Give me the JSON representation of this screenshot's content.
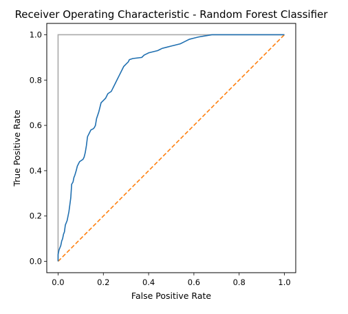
{
  "chart_data": {
    "type": "line",
    "title": "Receiver Operating Characteristic - Random Forest Classifier",
    "xlabel": "False Positive Rate",
    "ylabel": "True Positive Rate",
    "xlim": [
      -0.05,
      1.05
    ],
    "ylim": [
      -0.05,
      1.05
    ],
    "xticks": [
      0.0,
      0.2,
      0.4,
      0.6,
      0.8,
      1.0
    ],
    "yticks": [
      0.0,
      0.2,
      0.4,
      0.6,
      0.8,
      1.0
    ],
    "tick_labels": [
      "0.0",
      "0.2",
      "0.4",
      "0.6",
      "0.8",
      "1.0"
    ],
    "grid": false,
    "series": [
      {
        "color": "#1f6fb0",
        "style": "solid",
        "points": [
          [
            0.0,
            0.0
          ],
          [
            0.0,
            0.03
          ],
          [
            0.004,
            0.05
          ],
          [
            0.008,
            0.06
          ],
          [
            0.012,
            0.07
          ],
          [
            0.016,
            0.09
          ],
          [
            0.02,
            0.1
          ],
          [
            0.024,
            0.12
          ],
          [
            0.028,
            0.13
          ],
          [
            0.032,
            0.16
          ],
          [
            0.036,
            0.17
          ],
          [
            0.04,
            0.18
          ],
          [
            0.044,
            0.2
          ],
          [
            0.048,
            0.22
          ],
          [
            0.052,
            0.25
          ],
          [
            0.056,
            0.28
          ],
          [
            0.06,
            0.34
          ],
          [
            0.066,
            0.35
          ],
          [
            0.07,
            0.37
          ],
          [
            0.074,
            0.38
          ],
          [
            0.08,
            0.4
          ],
          [
            0.085,
            0.42
          ],
          [
            0.09,
            0.43
          ],
          [
            0.095,
            0.44
          ],
          [
            0.11,
            0.45
          ],
          [
            0.115,
            0.46
          ],
          [
            0.12,
            0.48
          ],
          [
            0.125,
            0.51
          ],
          [
            0.13,
            0.55
          ],
          [
            0.14,
            0.57
          ],
          [
            0.145,
            0.58
          ],
          [
            0.155,
            0.585
          ],
          [
            0.16,
            0.59
          ],
          [
            0.165,
            0.6
          ],
          [
            0.17,
            0.63
          ],
          [
            0.18,
            0.66
          ],
          [
            0.19,
            0.7
          ],
          [
            0.2,
            0.71
          ],
          [
            0.21,
            0.72
          ],
          [
            0.22,
            0.74
          ],
          [
            0.235,
            0.75
          ],
          [
            0.24,
            0.76
          ],
          [
            0.25,
            0.78
          ],
          [
            0.26,
            0.8
          ],
          [
            0.27,
            0.82
          ],
          [
            0.28,
            0.84
          ],
          [
            0.29,
            0.86
          ],
          [
            0.3,
            0.87
          ],
          [
            0.31,
            0.88
          ],
          [
            0.315,
            0.89
          ],
          [
            0.33,
            0.895
          ],
          [
            0.37,
            0.9
          ],
          [
            0.38,
            0.91
          ],
          [
            0.39,
            0.915
          ],
          [
            0.4,
            0.92
          ],
          [
            0.42,
            0.925
          ],
          [
            0.44,
            0.93
          ],
          [
            0.45,
            0.935
          ],
          [
            0.46,
            0.94
          ],
          [
            0.48,
            0.945
          ],
          [
            0.5,
            0.95
          ],
          [
            0.52,
            0.955
          ],
          [
            0.54,
            0.96
          ],
          [
            0.56,
            0.97
          ],
          [
            0.58,
            0.98
          ],
          [
            0.6,
            0.985
          ],
          [
            0.62,
            0.99
          ],
          [
            0.65,
            0.995
          ],
          [
            0.68,
            1.0
          ],
          [
            1.0,
            1.0
          ]
        ]
      },
      {
        "color": "#ff7f0e",
        "style": "dashed",
        "points": [
          [
            0.0,
            0.0
          ],
          [
            1.0,
            1.0
          ]
        ]
      },
      {
        "color": "#a9a9a9",
        "style": "solid",
        "points": [
          [
            0.0,
            0.0
          ],
          [
            0.0,
            1.0
          ],
          [
            1.0,
            1.0
          ]
        ]
      }
    ]
  }
}
